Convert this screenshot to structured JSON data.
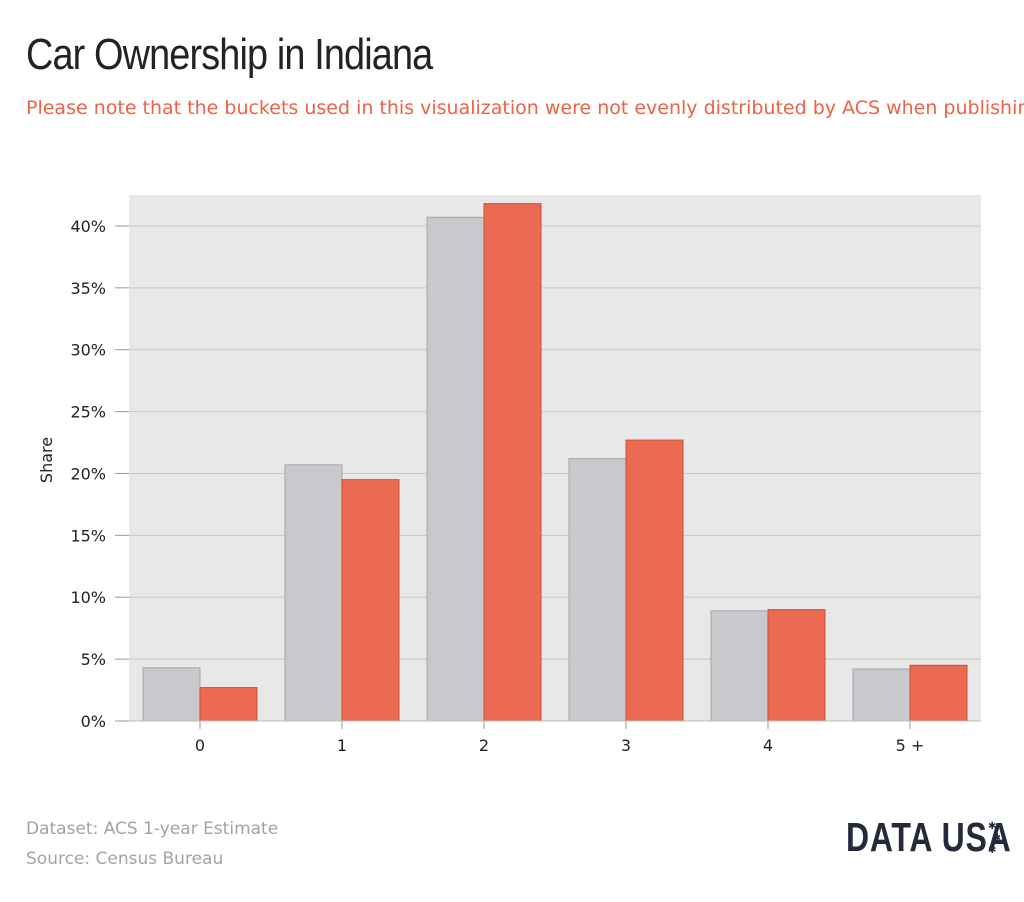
{
  "header": {
    "title": "Car Ownership in Indiana",
    "subtitle": "Please note that the buckets used in this visualization were not evenly distributed by ACS when publishin"
  },
  "colors": {
    "background": "#ffffff",
    "plot_background": "#e8e8e8",
    "gridline": "#c8c8c8",
    "series_a": "#c9c8cd",
    "series_a_stroke": "#a5a4ab",
    "series_b": "#ec6a51",
    "series_b_stroke": "#c9503a",
    "title": "#222222",
    "subtitle": "#ef6145",
    "footer": "#a3a3a3",
    "logo": "#242a3b"
  },
  "chart_data": {
    "type": "bar",
    "ylabel": "Share",
    "categories": [
      "0",
      "1",
      "2",
      "3",
      "4",
      "5 +"
    ],
    "series": [
      {
        "color": "#c9c8cd",
        "values": [
          4.3,
          20.7,
          40.7,
          21.2,
          8.9,
          4.2
        ]
      },
      {
        "color": "#ec6a51",
        "values": [
          2.7,
          19.5,
          41.8,
          22.7,
          9.0,
          4.5
        ]
      }
    ],
    "ylim": [
      0,
      42.5
    ],
    "yticks": [
      0,
      5,
      10,
      15,
      20,
      25,
      30,
      35,
      40
    ],
    "ytick_labels": [
      "0%",
      "5%",
      "10%",
      "15%",
      "20%",
      "25%",
      "30%",
      "35%",
      "40%"
    ],
    "grid": true
  },
  "footer": {
    "dataset": "Dataset: ACS 1-year Estimate",
    "source": "Source: Census Bureau",
    "logo_text": "DATA USA"
  }
}
